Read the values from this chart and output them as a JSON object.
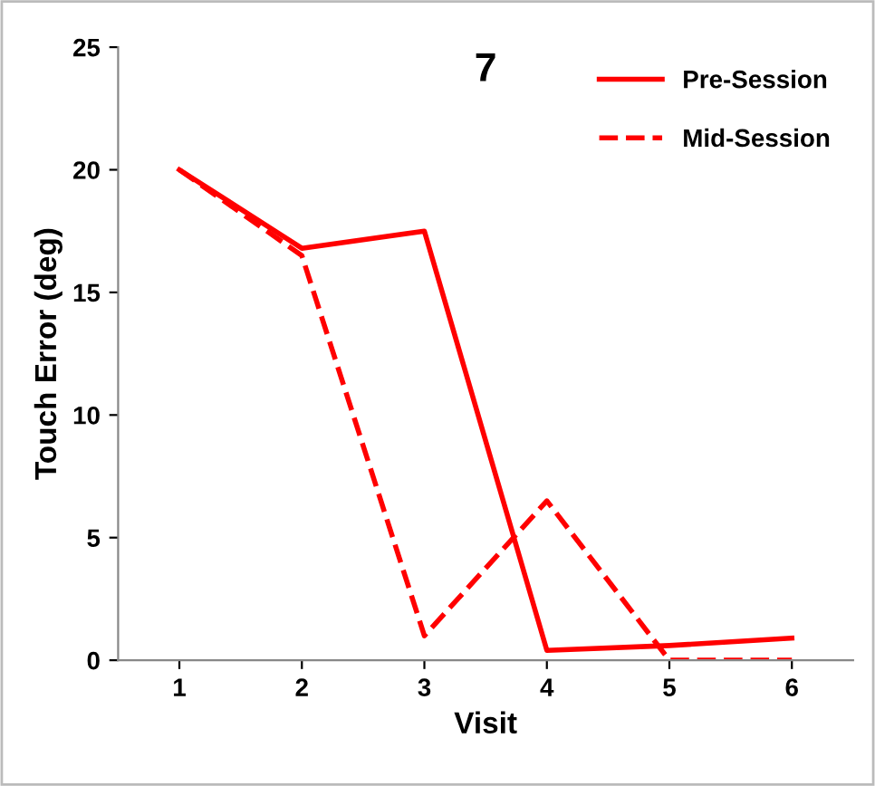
{
  "chart_data": {
    "type": "line",
    "title": "7",
    "xlabel": "Visit",
    "ylabel": "Touch Error (deg)",
    "categories": [
      "1",
      "2",
      "3",
      "4",
      "5",
      "6"
    ],
    "series": [
      {
        "name": "Pre-Session",
        "color": "#ff0000",
        "line_style": "solid",
        "values": [
          20,
          16.8,
          17.5,
          0.4,
          0.6,
          0.9
        ]
      },
      {
        "name": "Mid-Session",
        "color": "#ff0000",
        "line_style": "dashed",
        "values": [
          20,
          16.5,
          1.0,
          6.5,
          0,
          0
        ]
      }
    ],
    "ylim": [
      0,
      25
    ],
    "yticks": [
      0,
      5,
      10,
      15,
      20,
      25
    ],
    "grid": false,
    "legend": "top right",
    "marker": "none"
  }
}
